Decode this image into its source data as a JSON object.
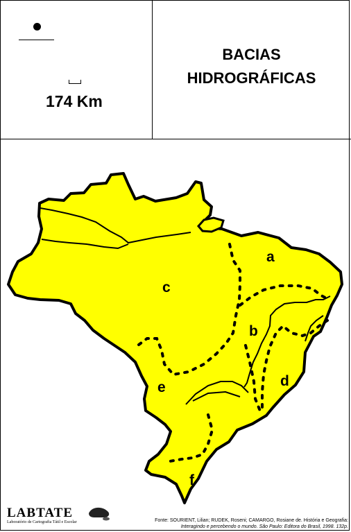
{
  "header": {
    "scale_label": "174 Km",
    "title_line1": "BACIAS",
    "title_line2": "HIDROGRÁFICAS"
  },
  "map": {
    "fill_color": "#ffff00",
    "outline_color": "#000000",
    "labels": {
      "a": "a",
      "b": "b",
      "c": "c",
      "d": "d",
      "e": "e",
      "f": "f"
    }
  },
  "footer": {
    "logo_name": "LABTATE",
    "logo_subtitle": "Laboratório de Cartografia Tátil e Escolar",
    "source_line1": "Fonte: SOURIENT, Lilian; RUDEK, Roseni; CAMARGO, Rosiane de. História e Geografia:",
    "source_line2": "Interagindo e percebendo o mundo. São Paulo: Editora do Brasil, 1998. 132p."
  }
}
